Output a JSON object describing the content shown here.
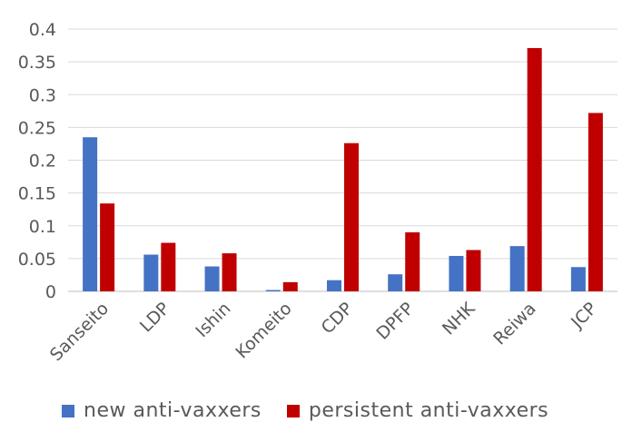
{
  "chart_data": {
    "type": "bar",
    "categories": [
      "Sanseito",
      "LDP",
      "Ishin",
      "Komeito",
      "CDP",
      "DPFP",
      "NHK",
      "Reiwa",
      "JCP"
    ],
    "series": [
      {
        "name": "new anti-vaxxers",
        "color": "#4472C4",
        "values": [
          0.235,
          0.056,
          0.038,
          0.002,
          0.017,
          0.026,
          0.054,
          0.069,
          0.037
        ]
      },
      {
        "name": "persistent anti-vaxxers",
        "color": "#C00000",
        "values": [
          0.134,
          0.074,
          0.058,
          0.014,
          0.226,
          0.09,
          0.063,
          0.371,
          0.272
        ]
      }
    ],
    "yticks": [
      "0",
      "0.05",
      "0.1",
      "0.15",
      "0.2",
      "0.25",
      "0.3",
      "0.35",
      "0.4"
    ],
    "ylim": [
      0,
      0.4
    ],
    "grid": true,
    "legend_position": "bottom",
    "title": "",
    "xlabel": "",
    "ylabel": ""
  }
}
